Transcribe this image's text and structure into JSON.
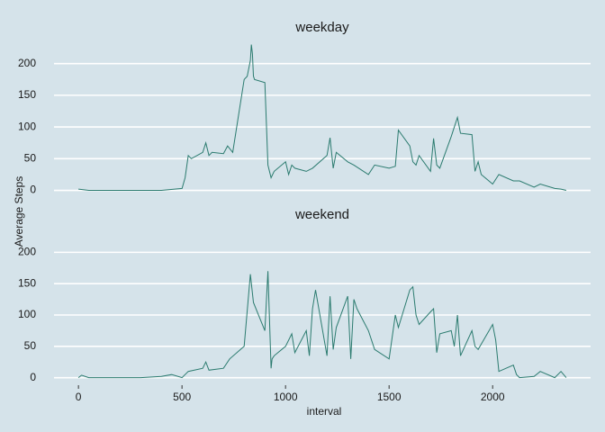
{
  "x_label": "interval",
  "y_label": "Average Steps",
  "chart_data": [
    {
      "type": "line",
      "title": "weekday",
      "x": [
        0,
        50,
        100,
        200,
        300,
        400,
        500,
        515,
        530,
        545,
        600,
        615,
        630,
        645,
        700,
        720,
        745,
        800,
        815,
        830,
        835,
        840,
        845,
        850,
        900,
        915,
        930,
        945,
        1000,
        1015,
        1030,
        1045,
        1100,
        1130,
        1200,
        1215,
        1230,
        1245,
        1300,
        1330,
        1400,
        1430,
        1500,
        1530,
        1545,
        1600,
        1615,
        1630,
        1645,
        1700,
        1715,
        1730,
        1745,
        1800,
        1830,
        1845,
        1900,
        1915,
        1930,
        1945,
        2000,
        2030,
        2100,
        2130,
        2200,
        2230,
        2300,
        2330,
        2355
      ],
      "values": [
        2,
        0,
        0,
        0,
        0,
        0,
        3,
        20,
        55,
        50,
        60,
        75,
        55,
        60,
        58,
        70,
        60,
        175,
        180,
        205,
        230,
        215,
        180,
        175,
        170,
        40,
        20,
        30,
        45,
        25,
        40,
        35,
        30,
        35,
        55,
        83,
        35,
        60,
        45,
        40,
        25,
        40,
        35,
        38,
        95,
        70,
        45,
        40,
        55,
        30,
        82,
        40,
        35,
        85,
        115,
        90,
        88,
        30,
        45,
        25,
        10,
        25,
        15,
        15,
        5,
        10,
        3,
        2,
        0
      ],
      "color": "#2b7b6f",
      "xlim": [
        -118,
        2473
      ],
      "ylim": [
        -12,
        235
      ],
      "yticks": [
        0,
        50,
        100,
        150,
        200
      ],
      "grid": true
    },
    {
      "type": "line",
      "title": "weekend",
      "x": [
        0,
        15,
        50,
        100,
        200,
        300,
        400,
        450,
        500,
        530,
        600,
        615,
        630,
        700,
        730,
        800,
        830,
        845,
        900,
        915,
        930,
        935,
        945,
        1000,
        1030,
        1045,
        1100,
        1115,
        1130,
        1145,
        1200,
        1215,
        1230,
        1245,
        1300,
        1315,
        1330,
        1345,
        1400,
        1430,
        1500,
        1530,
        1545,
        1600,
        1615,
        1630,
        1645,
        1700,
        1715,
        1730,
        1745,
        1800,
        1815,
        1830,
        1845,
        1900,
        1915,
        1930,
        2000,
        2015,
        2030,
        2100,
        2115,
        2130,
        2200,
        2230,
        2300,
        2330,
        2355
      ],
      "values": [
        0,
        4,
        0,
        0,
        0,
        0,
        2,
        5,
        0,
        10,
        15,
        25,
        12,
        15,
        30,
        50,
        165,
        120,
        75,
        170,
        15,
        30,
        35,
        50,
        70,
        40,
        75,
        35,
        110,
        140,
        35,
        130,
        45,
        80,
        130,
        30,
        125,
        110,
        75,
        45,
        30,
        100,
        80,
        140,
        145,
        100,
        85,
        105,
        110,
        40,
        70,
        75,
        50,
        100,
        35,
        75,
        50,
        45,
        85,
        60,
        10,
        20,
        5,
        0,
        2,
        10,
        0,
        10,
        0
      ],
      "color": "#2b7b6f",
      "xlim": [
        -118,
        2473
      ],
      "ylim": [
        -12,
        235
      ],
      "yticks": [
        0,
        50,
        100,
        150,
        200
      ],
      "xticks": [
        0,
        500,
        1000,
        1500,
        2000
      ],
      "grid": true
    }
  ]
}
